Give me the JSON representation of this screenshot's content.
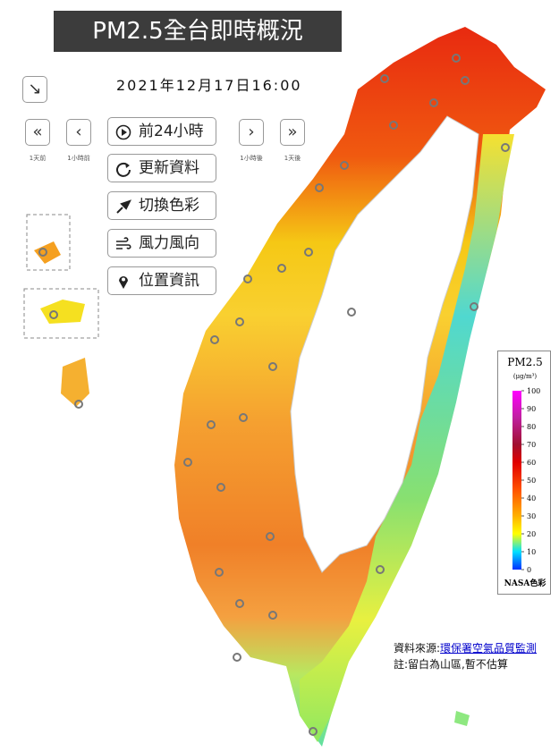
{
  "header": {
    "title": "PM2.5全台即時概況",
    "timestamp": "2021年12月17日16:00"
  },
  "nav": {
    "day_back": "1天前",
    "hour_back": "1小時前",
    "hour_fwd": "1小時後",
    "day_fwd": "1天後"
  },
  "buttons": [
    "前24小時",
    "更新資料",
    "切換色彩",
    "風力風向",
    "位置資訊"
  ],
  "legend": {
    "title": "PM2.5",
    "unit": "(μg/m³)",
    "ticks": [
      0,
      10,
      20,
      30,
      40,
      50,
      60,
      70,
      80,
      90,
      100
    ],
    "palette": "NASA色彩"
  },
  "footer": {
    "source_label": "資料來源:",
    "source_link": "環保署空氣品質監測",
    "note": "註:留白為山區,暫不估算"
  }
}
